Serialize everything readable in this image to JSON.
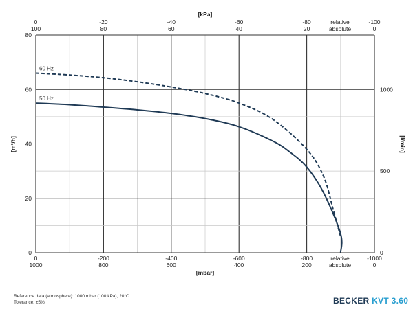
{
  "chart_data": {
    "type": "line",
    "axes": {
      "top_unit": "[kPa]",
      "bottom_unit": "[mbar]",
      "left_unit": "[m³/h]",
      "right_unit": "[l/min]",
      "top_ticks_relative": [
        "0",
        "-20",
        "-40",
        "-60",
        "-80",
        "-100"
      ],
      "top_ticks_absolute": [
        "100",
        "80",
        "60",
        "40",
        "20",
        "0"
      ],
      "top_mode_labels": [
        "relative",
        "absolute"
      ],
      "bottom_ticks_relative": [
        "0",
        "-200",
        "-400",
        "-600",
        "-800",
        "-1000"
      ],
      "bottom_ticks_absolute": [
        "1000",
        "800",
        "600",
        "400",
        "200",
        "0"
      ],
      "bottom_mode_labels": [
        "relative",
        "absolute"
      ],
      "left_ticks": [
        "0",
        "20",
        "40",
        "60",
        "80"
      ],
      "right_ticks": [
        "0",
        "500",
        "1000"
      ]
    },
    "xlim": [
      0,
      -1000
    ],
    "ylim": [
      0,
      80
    ],
    "y2_ticks_values": [
      0,
      500,
      1000
    ],
    "grid": true,
    "series": [
      {
        "name": "60 Hz",
        "style": "dashed",
        "color": "#1f3a55",
        "x": [
          0,
          -100,
          -200,
          -300,
          -400,
          -500,
          -600,
          -700,
          -800,
          -850,
          -880,
          -900
        ],
        "y": [
          66,
          65.3,
          64.3,
          62.8,
          60.9,
          58.5,
          55,
          49,
          38,
          28,
          15,
          6
        ]
      },
      {
        "name": "50 Hz",
        "style": "solid",
        "color": "#1f3a55",
        "x": [
          0,
          -100,
          -200,
          -300,
          -400,
          -500,
          -600,
          -700,
          -750,
          -800,
          -850,
          -900,
          -900
        ],
        "y": [
          55,
          54.4,
          53.5,
          52.5,
          51.2,
          49.3,
          46.3,
          41,
          37,
          31.5,
          22,
          7,
          0
        ]
      }
    ]
  },
  "footer": {
    "note_line1": "Reference data (atmosphere): 1000 mbar (100 kPa), 20°C",
    "note_line2": "Tolerance: ±5%",
    "brand_name": "BECKER",
    "brand_model": "KVT 3.60"
  }
}
